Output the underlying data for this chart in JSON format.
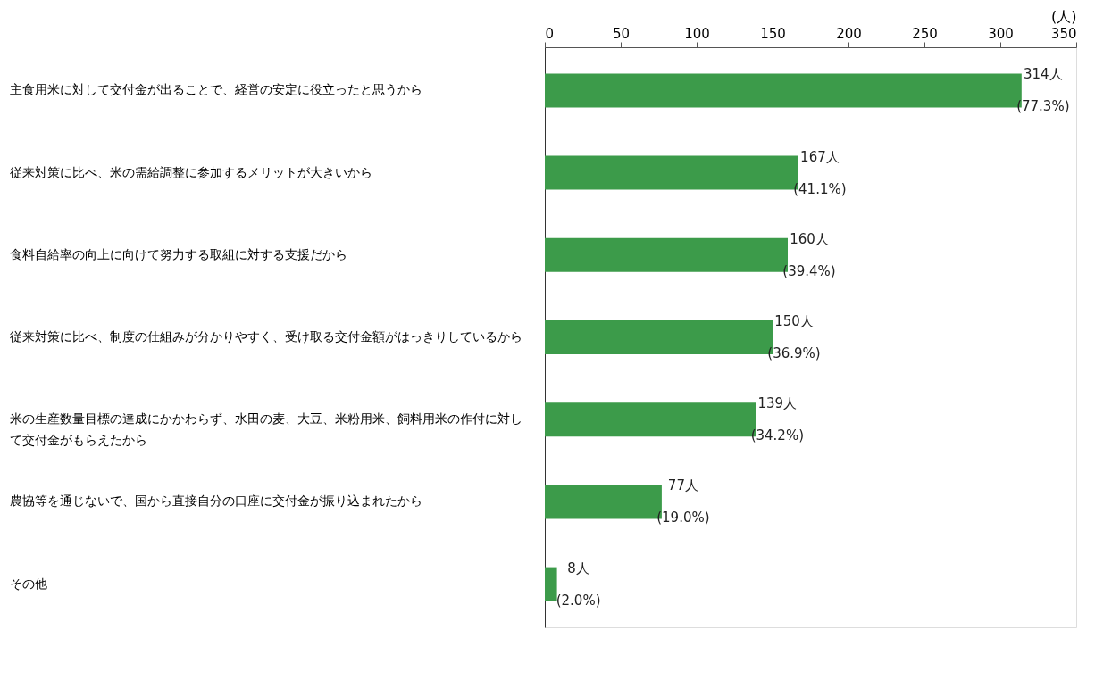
{
  "chart_data": {
    "type": "bar",
    "orientation": "horizontal",
    "xlabel": "(人)",
    "categories": [
      "主食用米に対して交付金が出ることで、経営の安定に役立ったと思うから",
      "従来対策に比べ、米の需給調整に参加するメリットが大きいから",
      "食料自給率の向上に向けて努力する取組に対する支援だから",
      "従来対策に比べ、制度の仕組みが分かりやすく、受け取る交付金額がはっきりしているから",
      "米の生産数量目標の達成にかかわらず、水田の麦、大豆、米粉用米、飼料用米の作付に対して交付金がもらえたから",
      "農協等を通じないで、国から直接自分の口座に交付金が振り込まれたから",
      "その他"
    ],
    "values": [
      314,
      167,
      160,
      150,
      139,
      77,
      8
    ],
    "value_labels": [
      "314人\n(77.3%)",
      "167人\n(41.1%)",
      "160人\n(39.4%)",
      "150人\n(36.9%)",
      "139人\n(34.2%)",
      "77人\n(19.0%)",
      "8人\n(2.0%)"
    ],
    "color": "#3c9b4a",
    "xlim": [
      0,
      350
    ],
    "xticks": [
      0,
      50,
      100,
      150,
      200,
      250,
      300,
      350
    ],
    "grid": false
  }
}
